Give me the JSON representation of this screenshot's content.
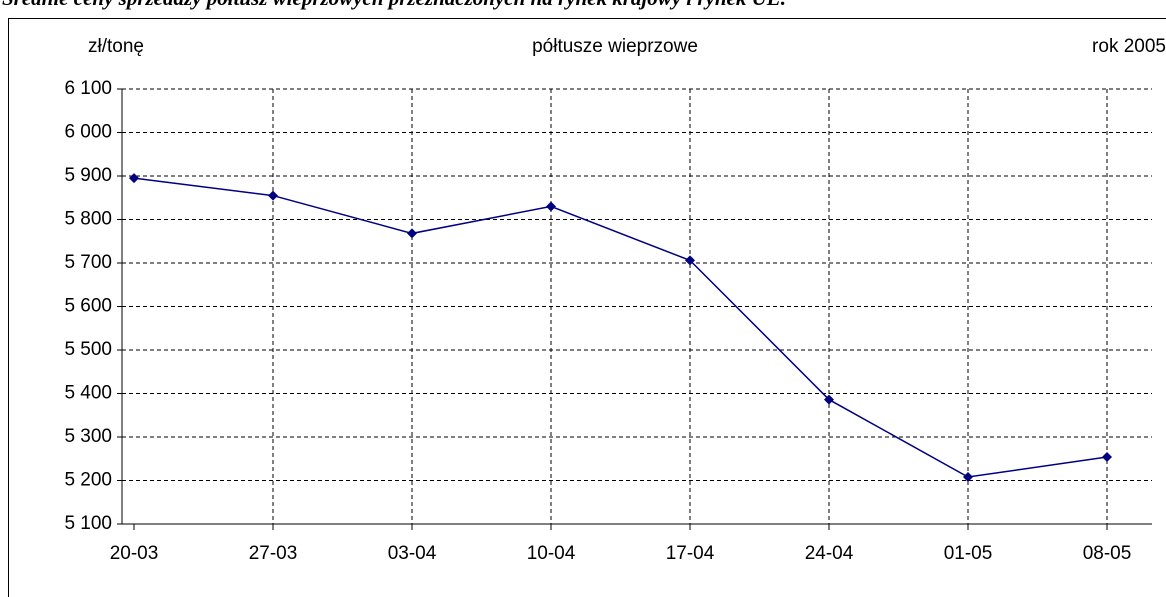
{
  "heading": "Średnie ceny sprzedaży półtusz wieprzowych przeznaczonych na rynek krajowy i rynek UE.",
  "chart_data": {
    "type": "line",
    "y_label": "zł/tonę",
    "title": "półtusze wieprzowe",
    "subtitle": "rok 2005",
    "categories": [
      "20-03",
      "27-03",
      "03-04",
      "10-04",
      "17-04",
      "24-04",
      "01-05",
      "08-05"
    ],
    "series": [
      {
        "name": "półtusze wieprzowe",
        "color": "#000080",
        "values": [
          5895,
          5855,
          5768,
          5830,
          5706,
          5386,
          5208,
          5254
        ]
      }
    ],
    "ylim": [
      5100,
      6100
    ],
    "yticks": [
      {
        "value": 5100,
        "label": "5 100"
      },
      {
        "value": 5200,
        "label": "5 200"
      },
      {
        "value": 5300,
        "label": "5 300"
      },
      {
        "value": 5400,
        "label": "5 400"
      },
      {
        "value": 5500,
        "label": "5 500"
      },
      {
        "value": 5600,
        "label": "5 600"
      },
      {
        "value": 5700,
        "label": "5 700"
      },
      {
        "value": 5800,
        "label": "5 800"
      },
      {
        "value": 5900,
        "label": "5 900"
      },
      {
        "value": 6000,
        "label": "6 000"
      },
      {
        "value": 6100,
        "label": "6 100"
      }
    ],
    "grid": true
  }
}
